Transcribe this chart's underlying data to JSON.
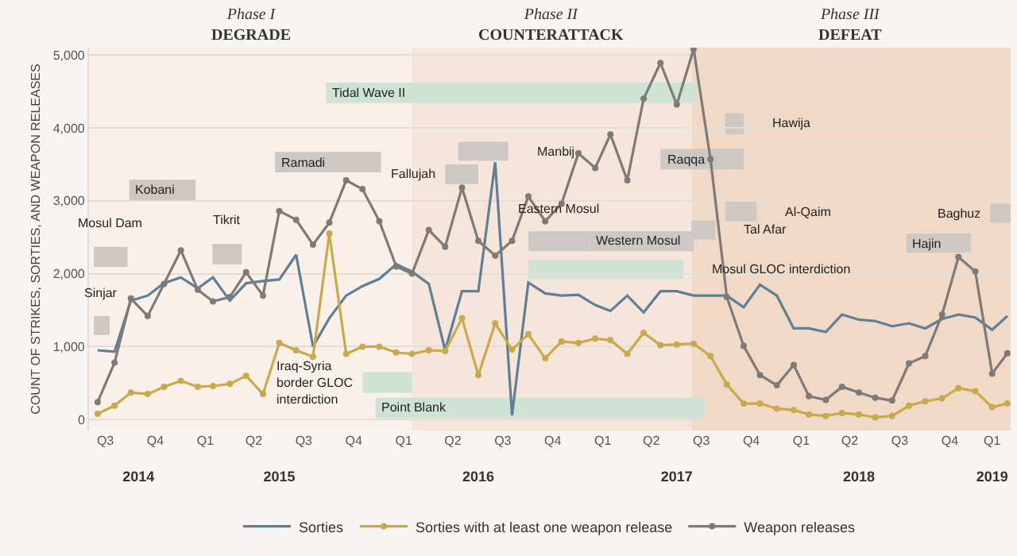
{
  "chart_data": {
    "type": "line",
    "ylabel": "COUNT OF STRIKES, SORTIES, AND WEAPON RELEASES",
    "x": [
      "2014-08",
      "2014-09",
      "2014-10",
      "2014-11",
      "2014-12",
      "2015-01",
      "2015-02",
      "2015-03",
      "2015-04",
      "2015-05",
      "2015-06",
      "2015-07",
      "2015-08",
      "2015-09",
      "2015-10",
      "2015-11",
      "2015-12",
      "2016-01",
      "2016-02",
      "2016-03",
      "2016-04",
      "2016-05",
      "2016-06",
      "2016-07",
      "2016-08",
      "2016-09",
      "2016-10",
      "2016-11",
      "2016-12",
      "2017-01",
      "2017-02",
      "2017-03",
      "2017-04",
      "2017-05",
      "2017-06",
      "2017-07",
      "2017-08",
      "2017-09",
      "2017-10",
      "2017-11",
      "2017-12",
      "2018-01",
      "2018-02",
      "2018-03",
      "2018-04",
      "2018-05",
      "2018-06",
      "2018-07",
      "2018-08",
      "2018-09",
      "2018-10",
      "2018-11",
      "2018-12",
      "2019-01",
      "2019-02",
      "2019-03"
    ],
    "series": [
      {
        "name": "Sorties",
        "color": "#5f7f96",
        "marker": "none",
        "values": [
          950,
          930,
          1630,
          1700,
          1870,
          1950,
          1800,
          1950,
          1630,
          1870,
          1900,
          1920,
          2260,
          1000,
          1390,
          1700,
          1830,
          1930,
          2130,
          2030,
          1860,
          950,
          1760,
          1760,
          3530,
          60,
          1880,
          1730,
          1700,
          1710,
          1570,
          1490,
          1700,
          1470,
          1760,
          1760,
          1700,
          1700,
          1700,
          1540,
          1850,
          1700,
          1250,
          1250,
          1200,
          1440,
          1370,
          1350,
          1280,
          1320,
          1250,
          1380,
          1440,
          1400,
          1230,
          1420
        ]
      },
      {
        "name": "Sorties with at least one weapon release",
        "color": "#c9a94a",
        "marker": "circle",
        "values": [
          80,
          190,
          370,
          350,
          450,
          530,
          450,
          460,
          490,
          600,
          350,
          1050,
          950,
          860,
          2550,
          900,
          1000,
          1000,
          920,
          900,
          950,
          940,
          1390,
          610,
          1320,
          960,
          1170,
          840,
          1070,
          1050,
          1110,
          1090,
          900,
          1190,
          1020,
          1030,
          1040,
          870,
          480,
          220,
          220,
          150,
          130,
          70,
          50,
          90,
          70,
          30,
          50,
          190,
          250,
          290,
          430,
          390,
          170,
          220
        ]
      },
      {
        "name": "Weapon releases",
        "color": "#7d7a78",
        "marker": "circle",
        "values": [
          240,
          780,
          1660,
          1420,
          1860,
          2320,
          1780,
          1620,
          1680,
          2020,
          1700,
          2860,
          2740,
          2400,
          2700,
          3280,
          3160,
          2720,
          2100,
          2000,
          2600,
          2370,
          3180,
          2450,
          2250,
          2450,
          3060,
          2720,
          2960,
          3650,
          3450,
          3910,
          3280,
          4400,
          4890,
          4320,
          5080,
          3570,
          1680,
          1010,
          610,
          470,
          750,
          320,
          270,
          450,
          370,
          300,
          260,
          770,
          870,
          1440,
          2230,
          2030,
          630,
          910
        ]
      }
    ],
    "xlim": [
      "2014-07-16",
      "2019-03-07"
    ],
    "xticks": [
      {
        "value": "2014-08-15",
        "label": "Q3"
      },
      {
        "value": "2014-11-15",
        "label": "Q4"
      },
      {
        "value": "2015-02-15",
        "label": "Q1"
      },
      {
        "value": "2015-05-15",
        "label": "Q2"
      },
      {
        "value": "2015-08-15",
        "label": "Q3"
      },
      {
        "value": "2015-11-15",
        "label": "Q4"
      },
      {
        "value": "2016-02-15",
        "label": "Q1"
      },
      {
        "value": "2016-05-15",
        "label": "Q2"
      },
      {
        "value": "2016-08-15",
        "label": "Q3"
      },
      {
        "value": "2016-11-15",
        "label": "Q4"
      },
      {
        "value": "2017-02-15",
        "label": "Q1"
      },
      {
        "value": "2017-05-15",
        "label": "Q2"
      },
      {
        "value": "2017-08-15",
        "label": "Q3"
      },
      {
        "value": "2017-11-15",
        "label": "Q4"
      },
      {
        "value": "2018-02-15",
        "label": "Q1"
      },
      {
        "value": "2018-05-15",
        "label": "Q2"
      },
      {
        "value": "2018-08-15",
        "label": "Q3"
      },
      {
        "value": "2018-11-15",
        "label": "Q4"
      },
      {
        "value": "2019-02-01",
        "label": "Q1"
      }
    ],
    "x2lim": [
      "2014-07-16",
      "2019-03-07"
    ],
    "x2ticks": [
      {
        "value": "2014-10-15",
        "label": "2014"
      },
      {
        "value": "2015-07-01",
        "label": "2015"
      },
      {
        "value": "2016-07-01",
        "label": "2016"
      },
      {
        "value": "2017-07-01",
        "label": "2017"
      },
      {
        "value": "2018-06-01",
        "label": "2018"
      },
      {
        "value": "2019-02-01",
        "label": "2019"
      }
    ],
    "ylim": [
      -150,
      5100
    ],
    "yticks": [
      {
        "value": 0,
        "label": "0"
      },
      {
        "value": 1000,
        "label": "1,000"
      },
      {
        "value": 2000,
        "label": "2,000"
      },
      {
        "value": 3000,
        "label": "3,000"
      },
      {
        "value": 4000,
        "label": "4,000"
      },
      {
        "value": 5000,
        "label": "5,000"
      }
    ],
    "grid": "y",
    "legend": "bottom",
    "bands": [
      {
        "axis": "x",
        "from": "2014-07-16",
        "to": "2016-03-01",
        "label": "Phase I\nDEGRADE",
        "color": "#f9f0ea"
      },
      {
        "axis": "x",
        "from": "2016-03-01",
        "to": "2017-07-28",
        "label": "Phase II\nCOUNTERATTACK",
        "color": "#f6e5db"
      },
      {
        "axis": "x",
        "from": "2017-07-28",
        "to": "2019-03-07",
        "label": "Phase III\nDEFEAT",
        "color": "#f1d9c8"
      },
      {
        "axis": "x",
        "from": "2015-09-25",
        "to": "2017-08-06",
        "label": "Tidal Wave II",
        "color": "#cfe2d6"
      },
      {
        "axis": "x",
        "from": "2015-12-25",
        "to": "2017-08-21",
        "label": "Point Blank",
        "color": "#cfe2d6"
      },
      {
        "axis": "x",
        "from": "2015-12-01",
        "to": "2016-03-01",
        "label": "Iraq-Syria\nborder GLOC\ninterdiction",
        "color": "#cfe2d6"
      },
      {
        "axis": "x",
        "from": "2016-10-01",
        "to": "2017-07-13",
        "label": "Mosul GLOC interdiction",
        "color": "#cfe2d6"
      },
      {
        "axis": "x",
        "from": "2014-07-25",
        "to": "2014-08-23",
        "label": "Sinjar",
        "color": "#cdc8c4"
      },
      {
        "axis": "x",
        "from": "2014-07-25",
        "to": "2014-09-25",
        "label": "Mosul Dam",
        "color": "#cdc8c4"
      },
      {
        "axis": "x",
        "from": "2014-09-28",
        "to": "2015-01-28",
        "label": "Kobani",
        "color": "#cdc8c4"
      },
      {
        "axis": "x",
        "from": "2015-02-28",
        "to": "2015-04-23",
        "label": "Tikrit",
        "color": "#cdc8c4"
      },
      {
        "axis": "x",
        "from": "2015-06-23",
        "to": "2016-01-04",
        "label": "Ramadi",
        "color": "#cdc8c4"
      },
      {
        "axis": "x",
        "from": "2016-05-01",
        "to": "2016-07-01",
        "label": "Fallujah",
        "color": "#cdc8c4"
      },
      {
        "axis": "x",
        "from": "2016-05-25",
        "to": "2016-08-25",
        "label": "Manbij",
        "color": "#cdc8c4"
      },
      {
        "axis": "x",
        "from": "2016-10-01",
        "to": "2017-01-21",
        "label": "Eastern Mosul",
        "color": "#cdc8c4"
      },
      {
        "axis": "x",
        "from": "2017-01-21",
        "to": "2017-08-01",
        "label": "Western Mosul",
        "color": "#cdc8c4"
      },
      {
        "axis": "x",
        "from": "2017-06-01",
        "to": "2017-11-01",
        "label": "Raqqa",
        "color": "#cdc8c4"
      },
      {
        "axis": "x",
        "from": "2017-09-28",
        "to": "2017-11-01",
        "label": "Hawija",
        "color": "#cdc8c4"
      },
      {
        "axis": "x",
        "from": "2017-09-28",
        "to": "2017-11-25",
        "label": "Al-Qaim",
        "color": "#cdc8c4"
      },
      {
        "axis": "x",
        "from": "2017-07-28",
        "to": "2017-09-10",
        "label": "Tal Afar",
        "color": "#cdc8c4"
      },
      {
        "axis": "x",
        "from": "2018-08-27",
        "to": "2018-12-24",
        "label": "Hajin",
        "color": "#cdc8c4"
      },
      {
        "axis": "x",
        "from": "2019-01-28",
        "to": "2019-03-07",
        "label": "Baghuz",
        "color": "#cdc8c4"
      }
    ]
  }
}
